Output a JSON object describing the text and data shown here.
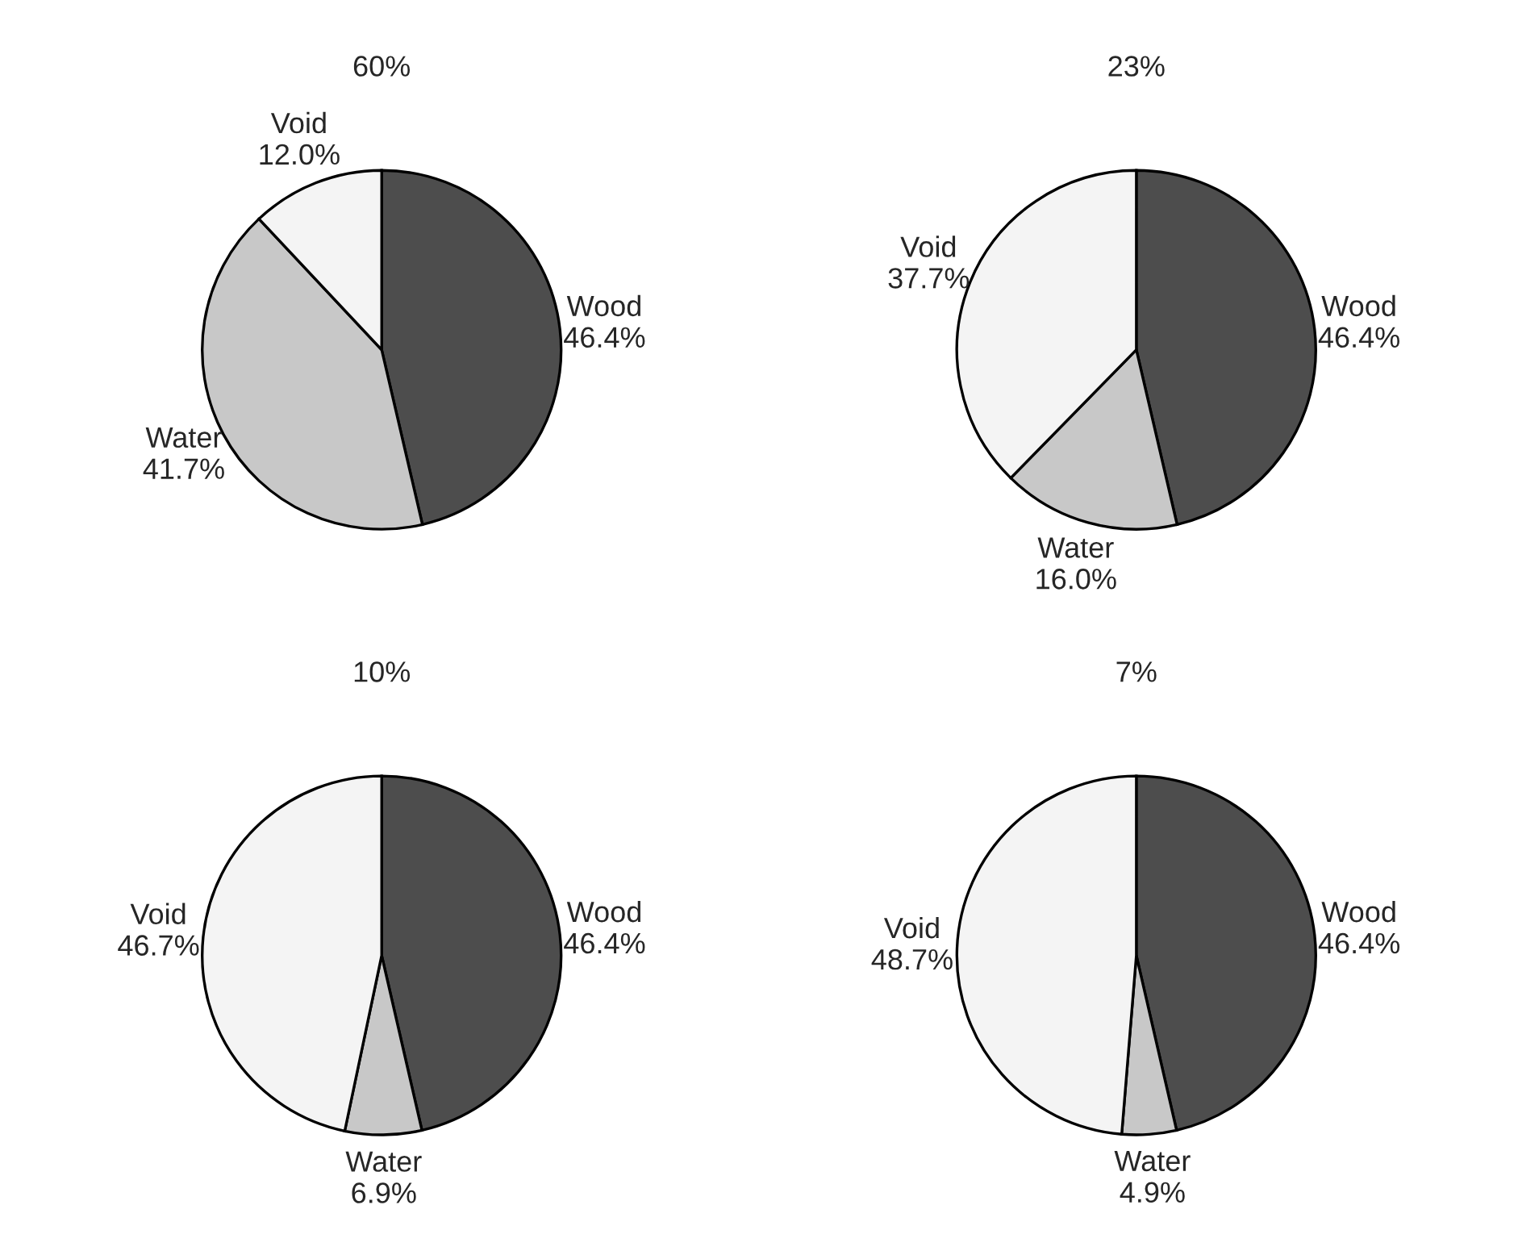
{
  "chart_data": [
    {
      "type": "pie",
      "title": "60%",
      "categories": [
        "Wood",
        "Water",
        "Void"
      ],
      "values": [
        46.4,
        41.7,
        12.0
      ],
      "value_labels": [
        "46.4%",
        "41.7%",
        "12.0%"
      ],
      "colors": [
        "#4d4d4d",
        "#c8c8c8",
        "#f4f4f4"
      ]
    },
    {
      "type": "pie",
      "title": "23%",
      "categories": [
        "Wood",
        "Water",
        "Void"
      ],
      "values": [
        46.4,
        16.0,
        37.7
      ],
      "value_labels": [
        "46.4%",
        "16.0%",
        "37.7%"
      ],
      "colors": [
        "#4d4d4d",
        "#c8c8c8",
        "#f4f4f4"
      ]
    },
    {
      "type": "pie",
      "title": "10%",
      "categories": [
        "Wood",
        "Water",
        "Void"
      ],
      "values": [
        46.4,
        6.9,
        46.7
      ],
      "value_labels": [
        "46.4%",
        "6.9%",
        "46.7%"
      ],
      "colors": [
        "#4d4d4d",
        "#c8c8c8",
        "#f4f4f4"
      ]
    },
    {
      "type": "pie",
      "title": "7%",
      "categories": [
        "Wood",
        "Water",
        "Void"
      ],
      "values": [
        46.4,
        4.9,
        48.7
      ],
      "value_labels": [
        "46.4%",
        "4.9%",
        "48.7%"
      ],
      "colors": [
        "#4d4d4d",
        "#c8c8c8",
        "#f4f4f4"
      ]
    }
  ]
}
